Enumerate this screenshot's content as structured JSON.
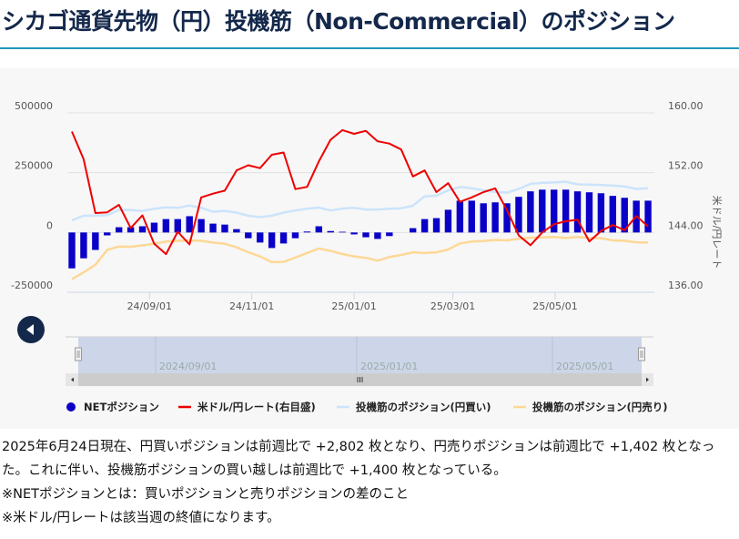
{
  "title": "シカゴ通貨先物（円）投機筋（Non-Commercial）のポジション",
  "chart_data": {
    "type": "bar+line",
    "left_axis": {
      "ticks": [
        "500000",
        "250000",
        "0",
        "-250000"
      ],
      "tick_values": [
        500000,
        250000,
        0,
        -250000
      ],
      "ylim": [
        -250000,
        500000
      ]
    },
    "right_axis": {
      "label": "米ドル/円レート",
      "ticks": [
        "160.00",
        "152.00",
        "144.00",
        "136.00"
      ],
      "tick_values": [
        160,
        152,
        144,
        136
      ],
      "ylim": [
        136,
        160
      ]
    },
    "x_ticks": [
      {
        "label": "24/09/01",
        "index": 6.6
      },
      {
        "label": "24/11/01",
        "index": 15.3
      },
      {
        "label": "25/01/01",
        "index": 24
      },
      {
        "label": "25/03/01",
        "index": 32.4
      },
      {
        "label": "25/05/01",
        "index": 41.1
      }
    ],
    "series": [
      {
        "name": "NETポジション",
        "type": "bar",
        "color": "#0a00c8",
        "axis": "left",
        "values": [
          -150000,
          -108000,
          -73000,
          -12000,
          22000,
          22000,
          26000,
          41000,
          56000,
          56000,
          68000,
          56000,
          37000,
          33000,
          14000,
          -24000,
          -42000,
          -65000,
          -46000,
          -24000,
          4000,
          26000,
          6000,
          3000,
          -8000,
          -20000,
          -27000,
          -15000,
          0,
          18000,
          56000,
          60000,
          95000,
          133000,
          133000,
          122000,
          126000,
          122000,
          149000,
          172000,
          179000,
          179000,
          179000,
          172000,
          168000,
          164000,
          153000,
          145000,
          133000,
          133000
        ]
      },
      {
        "name": "米ドル/円レート(右目盛)",
        "type": "line",
        "color": "#ee0000",
        "axis": "right",
        "values": [
          157.5,
          153.8,
          146.6,
          146.7,
          147.7,
          144.6,
          146.3,
          142.5,
          141.1,
          144.1,
          142.4,
          148.7,
          149.2,
          149.6,
          152.3,
          153.0,
          152.6,
          154.4,
          154.7,
          149.8,
          150.1,
          153.5,
          156.4,
          157.7,
          157.2,
          157.6,
          156.2,
          155.9,
          155.1,
          151.5,
          152.3,
          149.4,
          150.6,
          148.1,
          148.7,
          149.4,
          149.9,
          147.0,
          143.6,
          142.3,
          144.0,
          145.1,
          145.5,
          145.7,
          142.8,
          144.2,
          145.0,
          144.3,
          146.2,
          144.8
        ]
      },
      {
        "name": "投機筋のポジション(円買い)",
        "type": "line",
        "color": "#cce4fb",
        "axis": "left",
        "values": [
          51000,
          70000,
          70000,
          73000,
          94000,
          94000,
          90000,
          99000,
          105000,
          103000,
          113000,
          103000,
          87000,
          90000,
          83000,
          70000,
          64000,
          70000,
          83000,
          92000,
          99000,
          104000,
          92000,
          100000,
          103000,
          96000,
          96000,
          99000,
          101000,
          112000,
          151000,
          154000,
          176000,
          190000,
          185000,
          176000,
          169000,
          167000,
          182000,
          203000,
          208000,
          209000,
          212000,
          201000,
          200000,
          199000,
          196000,
          192000,
          182000,
          185000
        ]
      },
      {
        "name": "投機筋のポジション(円売り)",
        "type": "line",
        "color": "#fdd896",
        "axis": "left",
        "values": [
          -195000,
          -167000,
          -135000,
          -73000,
          -59000,
          -60000,
          -54000,
          -47000,
          -38000,
          -35000,
          -33000,
          -35000,
          -42000,
          -47000,
          -62000,
          -83000,
          -100000,
          -124000,
          -123000,
          -105000,
          -86000,
          -67000,
          -77000,
          -90000,
          -100000,
          -106000,
          -118000,
          -103000,
          -94000,
          -83000,
          -86000,
          -83000,
          -71000,
          -46000,
          -38000,
          -36000,
          -31000,
          -33000,
          -26000,
          -22000,
          -21000,
          -19000,
          -23000,
          -19000,
          -23000,
          -24000,
          -33000,
          -35000,
          -41000,
          -42000
        ]
      }
    ],
    "navigator": {
      "labels": [
        "2024/09/01",
        "2025/01/01",
        "2025/05/01"
      ]
    },
    "legend_position": "bottom"
  },
  "description": [
    "2025年6月24日現在、円買いポジションは前週比で +2,802 枚となり、円売りポジションは前週比で +1,402 枚となった。これに伴い、投機筋ポジションの買い越しは前週比で +1,400 枚となっている。",
    "※NETポジションとは：買いポジションと売りポジションの差のこと",
    "※米ドル/円レートは該当週の終値になります。"
  ]
}
